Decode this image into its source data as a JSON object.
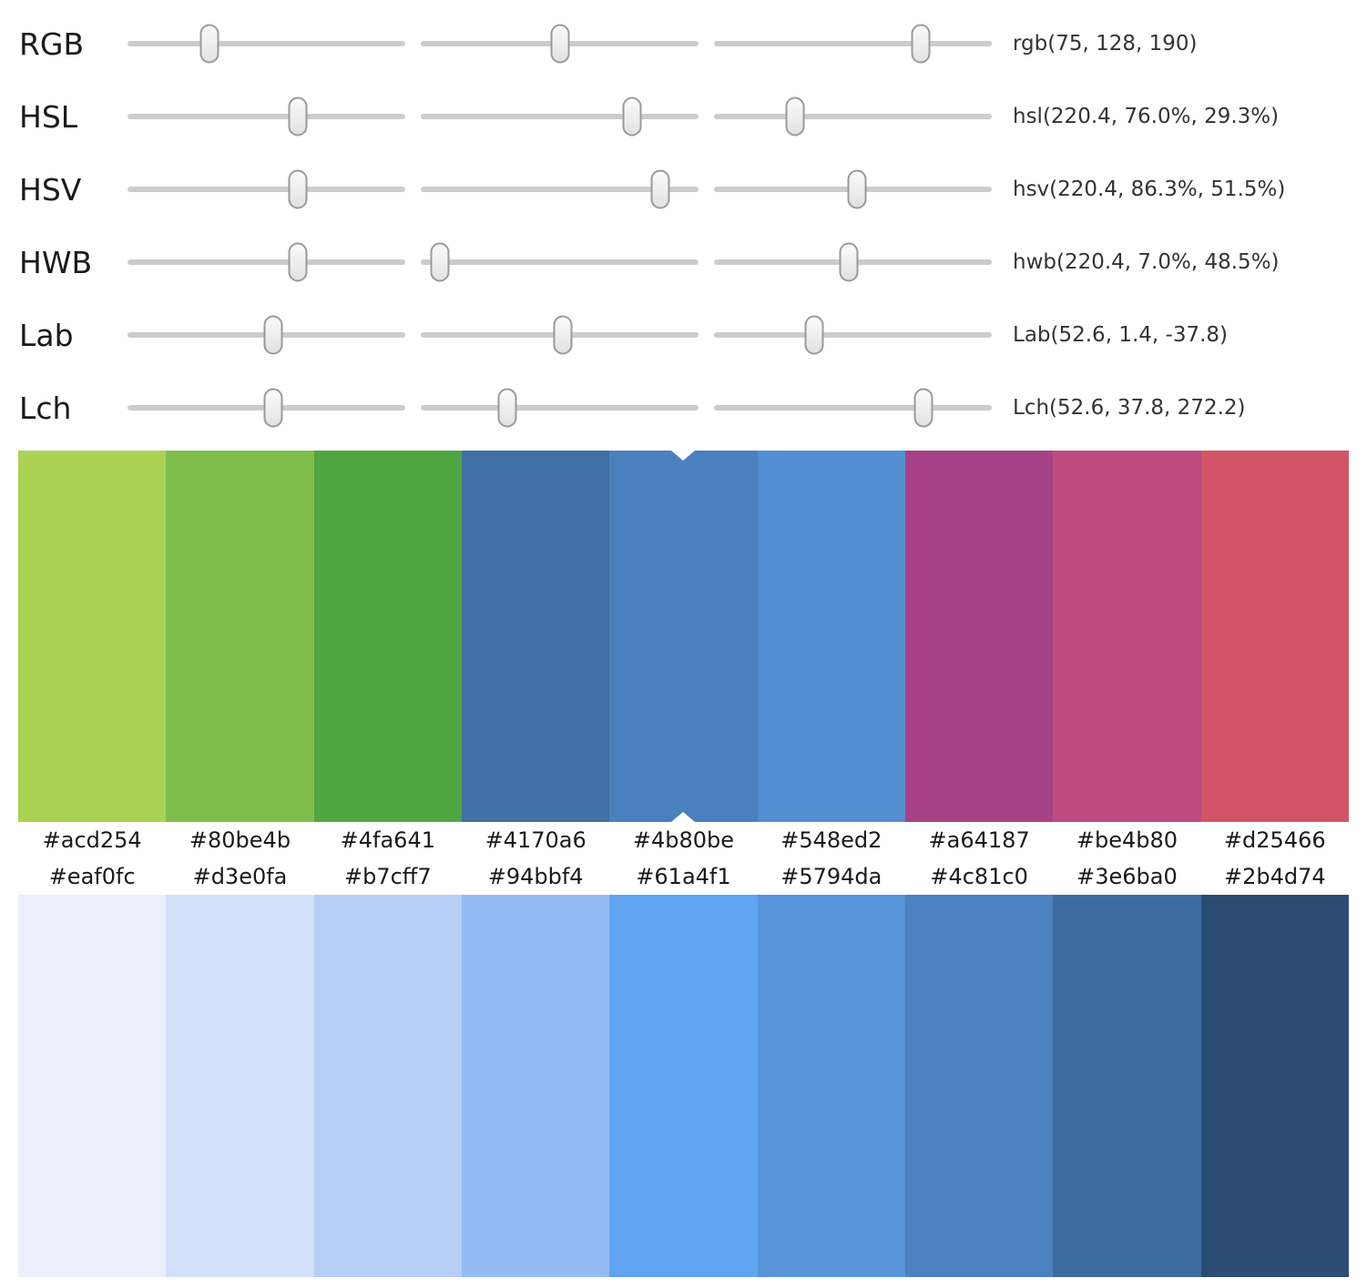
{
  "sliders": {
    "rows": [
      {
        "label": "RGB",
        "value": "rgb(75, 128, 190)",
        "positions": [
          29.4,
          50.2,
          74.5
        ]
      },
      {
        "label": "HSL",
        "value": "hsl(220.4, 76.0%, 29.3%)",
        "positions": [
          61.2,
          76.0,
          29.3
        ]
      },
      {
        "label": "HSV",
        "value": "hsv(220.4, 86.3%, 51.5%)",
        "positions": [
          61.2,
          86.3,
          51.5
        ]
      },
      {
        "label": "HWB",
        "value": "hwb(220.4, 7.0%, 48.5%)",
        "positions": [
          61.2,
          7.0,
          48.5
        ]
      },
      {
        "label": "Lab",
        "value": "Lab(52.6, 1.4, -37.8)",
        "positions": [
          52.6,
          51.0,
          36.0
        ]
      },
      {
        "label": "Lch",
        "value": "Lch(52.6, 37.8, 272.2)",
        "positions": [
          52.6,
          31.0,
          75.3
        ]
      }
    ]
  },
  "palettes": {
    "hue": {
      "colors": [
        "#acd254",
        "#80be4b",
        "#4fa641",
        "#4170a6",
        "#4b80be",
        "#548ed2",
        "#a64187",
        "#be4b80",
        "#d25466"
      ],
      "labels": [
        "#acd254",
        "#80be4b",
        "#4fa641",
        "#4170a6",
        "#4b80be",
        "#548ed2",
        "#a64187",
        "#be4b80",
        "#d25466"
      ],
      "selected_index": 4
    },
    "lightness": {
      "colors": [
        "#eaf0fc",
        "#d3e0fa",
        "#b7cff7",
        "#94bbf4",
        "#61a4f1",
        "#5794da",
        "#4c81c0",
        "#3e6ba0",
        "#2b4d74"
      ],
      "labels": [
        "#eaf0fc",
        "#d3e0fa",
        "#b7cff7",
        "#94bbf4",
        "#61a4f1",
        "#5794da",
        "#4c81c0",
        "#3e6ba0",
        "#2b4d74"
      ]
    }
  }
}
